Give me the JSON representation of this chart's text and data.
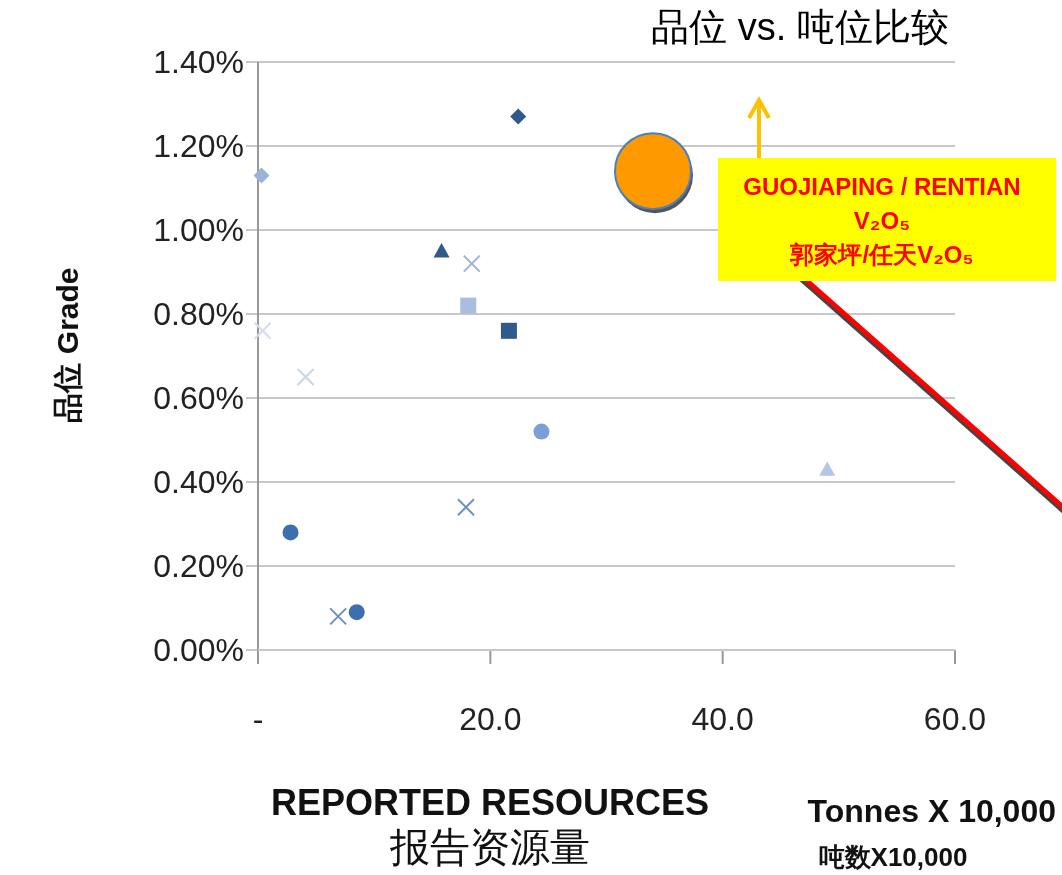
{
  "chart_data": {
    "type": "scatter",
    "title": "品位 vs. 吨位比较",
    "xlabel": "REPORTED RESOURCES\n报告资源量",
    "ylabel": "品位 Grade",
    "annotations": [
      "GUOJIAPING / RENTIAN\nV₂O₅\n郭家坪/任天V₂O₅",
      "Tonnes  X 10,000",
      "吨数X10,000"
    ],
    "xlim": [
      0,
      60
    ],
    "xticks": [
      {
        "value": 0,
        "label": "-"
      },
      {
        "value": 20,
        "label": "20.0"
      },
      {
        "value": 40,
        "label": "40.0"
      },
      {
        "value": 60,
        "label": "60.0"
      }
    ],
    "ylim": [
      0,
      1.4
    ],
    "yticks": [
      {
        "value": 0,
        "label": "0.00%"
      },
      {
        "value": 0.2,
        "label": "0.20%"
      },
      {
        "value": 0.4,
        "label": "0.40%"
      },
      {
        "value": 0.6,
        "label": "0.60%"
      },
      {
        "value": 0.8,
        "label": "0.80%"
      },
      {
        "value": 1.0,
        "label": "1.00%"
      },
      {
        "value": 1.2,
        "label": "1.20%"
      },
      {
        "value": 1.4,
        "label": "1.40%"
      }
    ],
    "grid": "y",
    "series": [
      {
        "x": [
          0.3
        ],
        "values": [
          1.13
        ],
        "marker": "diamond",
        "color": "#9ab3d9"
      },
      {
        "x": [
          22.4
        ],
        "values": [
          1.27
        ],
        "marker": "diamond",
        "color": "#2f5a8c"
      },
      {
        "x": [
          15.8
        ],
        "values": [
          0.95
        ],
        "marker": "triangle",
        "color": "#2f5a8c"
      },
      {
        "x": [
          18.4
        ],
        "values": [
          0.92
        ],
        "marker": "cross",
        "color": "#9ab3d9"
      },
      {
        "x": [
          18.1
        ],
        "values": [
          0.82
        ],
        "marker": "square",
        "color": "#a8bde0"
      },
      {
        "x": [
          21.6
        ],
        "values": [
          0.76
        ],
        "marker": "square",
        "color": "#2f5a8c"
      },
      {
        "x": [
          0.4
        ],
        "values": [
          0.76
        ],
        "marker": "cross",
        "color": "#d3ddef"
      },
      {
        "x": [
          4.1
        ],
        "values": [
          0.65
        ],
        "marker": "cross",
        "color": "#c9d6ea"
      },
      {
        "x": [
          24.4
        ],
        "values": [
          0.52
        ],
        "marker": "circle",
        "color": "#7b9fd6"
      },
      {
        "x": [
          49.0
        ],
        "values": [
          0.43
        ],
        "marker": "triangle",
        "color": "#b3c6e6"
      },
      {
        "x": [
          17.9
        ],
        "values": [
          0.34
        ],
        "marker": "cross",
        "color": "#6f90c4"
      },
      {
        "x": [
          2.8
        ],
        "values": [
          0.28
        ],
        "marker": "circle",
        "color": "#3d6eb0"
      },
      {
        "x": [
          6.9
        ],
        "values": [
          0.08
        ],
        "marker": "cross",
        "color": "#6f90c4"
      },
      {
        "x": [
          8.5
        ],
        "values": [
          0.09
        ],
        "marker": "circle",
        "color": "#3d6eb0"
      },
      {
        "type": "bubble",
        "x": [
          34.0
        ],
        "values": [
          1.14
        ],
        "sizes": [
          1
        ],
        "marker": "circle",
        "color": "#ff9900"
      }
    ]
  }
}
